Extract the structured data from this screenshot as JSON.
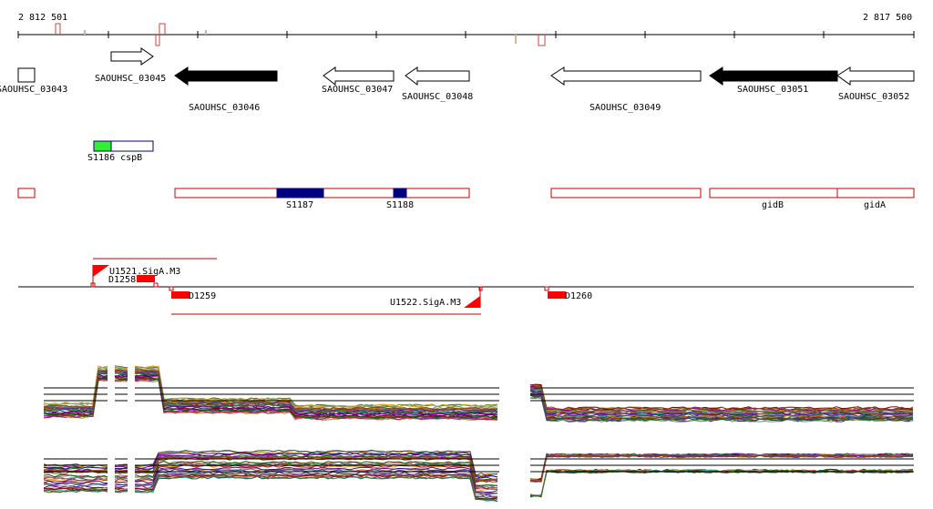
{
  "axis": {
    "start_label": "2 812 501",
    "end_label": "2 817 500",
    "start": 2812501,
    "end": 2817500
  },
  "colors": {
    "gene_fill_dark": "#000000",
    "gene_outline": "#000000",
    "region_outline": "#cc0000",
    "region_fill_blue": "#000080",
    "region_fill_green": "#33ee33",
    "signal_red": "#ff0000"
  },
  "genes": [
    {
      "label": "SAOUHSC_03043",
      "strand": "none",
      "filled": false
    },
    {
      "label": "SAOUHSC_03045",
      "strand": "+",
      "filled": false
    },
    {
      "label": "SAOUHSC_03046",
      "strand": "-",
      "filled": true
    },
    {
      "label": "SAOUHSC_03047",
      "strand": "-",
      "filled": false
    },
    {
      "label": "SAOUHSC_03048",
      "strand": "-",
      "filled": false
    },
    {
      "label": "SAOUHSC_03049",
      "strand": "-",
      "filled": false
    },
    {
      "label": "SAOUHSC_03051",
      "strand": "-",
      "filled": true
    },
    {
      "label": "SAOUHSC_03052",
      "strand": "-",
      "filled": false
    }
  ],
  "small_rna": [
    {
      "label": "S1186 cspB"
    }
  ],
  "regions": [
    {
      "label": "S1187"
    },
    {
      "label": "S1188"
    },
    {
      "label": "gidB"
    },
    {
      "label": "gidA"
    }
  ],
  "promoters": [
    {
      "label": "U1521.SigA.M3"
    },
    {
      "label": "U1522.SigA.M3"
    }
  ],
  "terminators": [
    {
      "label": "D1258"
    },
    {
      "label": "D1259"
    },
    {
      "label": "D1260"
    }
  ]
}
